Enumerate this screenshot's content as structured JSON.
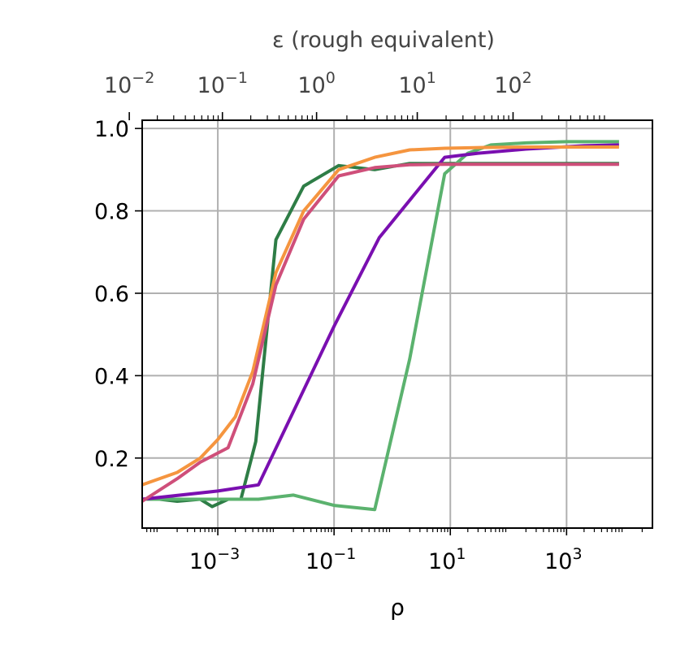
{
  "chart_data": {
    "type": "line",
    "xlabel": "ρ",
    "top_axis_label": "ε (rough equivalent)",
    "x_scale": "log",
    "x_range": [
      5e-05,
      30000
    ],
    "ylim": [
      0.03,
      1.02
    ],
    "x_ticks": [
      {
        "value": 0.001,
        "base": "10",
        "exp": "−3"
      },
      {
        "value": 0.1,
        "base": "10",
        "exp": "−1"
      },
      {
        "value": 10,
        "base": "10",
        "exp": "1"
      },
      {
        "value": 1000,
        "base": "10",
        "exp": "3"
      }
    ],
    "y_ticks": [
      {
        "value": 0.2,
        "label": "0.2"
      },
      {
        "value": 0.4,
        "label": "0.4"
      },
      {
        "value": 0.6,
        "label": "0.6"
      },
      {
        "value": 0.8,
        "label": "0.8"
      },
      {
        "value": 1.0,
        "label": "1.0"
      }
    ],
    "top_ticks": [
      {
        "rho": 3e-05,
        "base": "10",
        "exp": "−2"
      },
      {
        "rho": 0.0012,
        "base": "10",
        "exp": "−1"
      },
      {
        "rho": 0.05,
        "base": "10",
        "exp": "0"
      },
      {
        "rho": 2.7,
        "base": "10",
        "exp": "1"
      },
      {
        "rho": 120,
        "base": "10",
        "exp": "2"
      }
    ],
    "grid": true,
    "series": [
      {
        "color": "#2e7d46",
        "points": [
          [
            5e-05,
            0.1
          ],
          [
            0.0001,
            0.1
          ],
          [
            0.0002,
            0.095
          ],
          [
            0.0005,
            0.1
          ],
          [
            0.0008,
            0.082
          ],
          [
            0.0015,
            0.1
          ],
          [
            0.0025,
            0.1
          ],
          [
            0.0045,
            0.24
          ],
          [
            0.01,
            0.73
          ],
          [
            0.03,
            0.86
          ],
          [
            0.12,
            0.91
          ],
          [
            0.5,
            0.9
          ],
          [
            2,
            0.915
          ],
          [
            8,
            0.915
          ],
          [
            40,
            0.915
          ],
          [
            200,
            0.915
          ],
          [
            800,
            0.915
          ],
          [
            8000,
            0.915
          ]
        ]
      },
      {
        "color": "#5bb26e",
        "points": [
          [
            5e-05,
            0.1
          ],
          [
            0.0001,
            0.1
          ],
          [
            0.0005,
            0.1
          ],
          [
            0.001,
            0.1
          ],
          [
            0.005,
            0.1
          ],
          [
            0.02,
            0.11
          ],
          [
            0.1,
            0.085
          ],
          [
            0.5,
            0.075
          ],
          [
            2,
            0.44
          ],
          [
            8,
            0.89
          ],
          [
            20,
            0.94
          ],
          [
            50,
            0.96
          ],
          [
            200,
            0.965
          ],
          [
            1000,
            0.968
          ],
          [
            8000,
            0.968
          ]
        ]
      },
      {
        "color": "#7a0fb0",
        "points": [
          [
            5e-05,
            0.1
          ],
          [
            0.001,
            0.12
          ],
          [
            0.005,
            0.135
          ],
          [
            0.1,
            0.52
          ],
          [
            0.6,
            0.735
          ],
          [
            8,
            0.93
          ],
          [
            30,
            0.94
          ],
          [
            200,
            0.95
          ],
          [
            2000,
            0.958
          ],
          [
            8000,
            0.96
          ]
        ]
      },
      {
        "color": "#f5953f",
        "points": [
          [
            5e-05,
            0.135
          ],
          [
            0.0002,
            0.165
          ],
          [
            0.0005,
            0.2
          ],
          [
            0.001,
            0.245
          ],
          [
            0.002,
            0.3
          ],
          [
            0.004,
            0.41
          ],
          [
            0.01,
            0.65
          ],
          [
            0.03,
            0.8
          ],
          [
            0.12,
            0.9
          ],
          [
            0.5,
            0.93
          ],
          [
            2,
            0.948
          ],
          [
            8,
            0.952
          ],
          [
            40,
            0.954
          ],
          [
            200,
            0.955
          ],
          [
            1000,
            0.955
          ],
          [
            8000,
            0.955
          ]
        ]
      },
      {
        "color": "#cf4f7a",
        "points": [
          [
            5e-05,
            0.095
          ],
          [
            0.0002,
            0.15
          ],
          [
            0.0005,
            0.19
          ],
          [
            0.0015,
            0.225
          ],
          [
            0.004,
            0.38
          ],
          [
            0.01,
            0.62
          ],
          [
            0.03,
            0.78
          ],
          [
            0.12,
            0.885
          ],
          [
            0.5,
            0.905
          ],
          [
            2,
            0.912
          ],
          [
            8,
            0.913
          ],
          [
            40,
            0.913
          ],
          [
            200,
            0.913
          ],
          [
            1000,
            0.913
          ],
          [
            8000,
            0.913
          ]
        ]
      }
    ]
  }
}
